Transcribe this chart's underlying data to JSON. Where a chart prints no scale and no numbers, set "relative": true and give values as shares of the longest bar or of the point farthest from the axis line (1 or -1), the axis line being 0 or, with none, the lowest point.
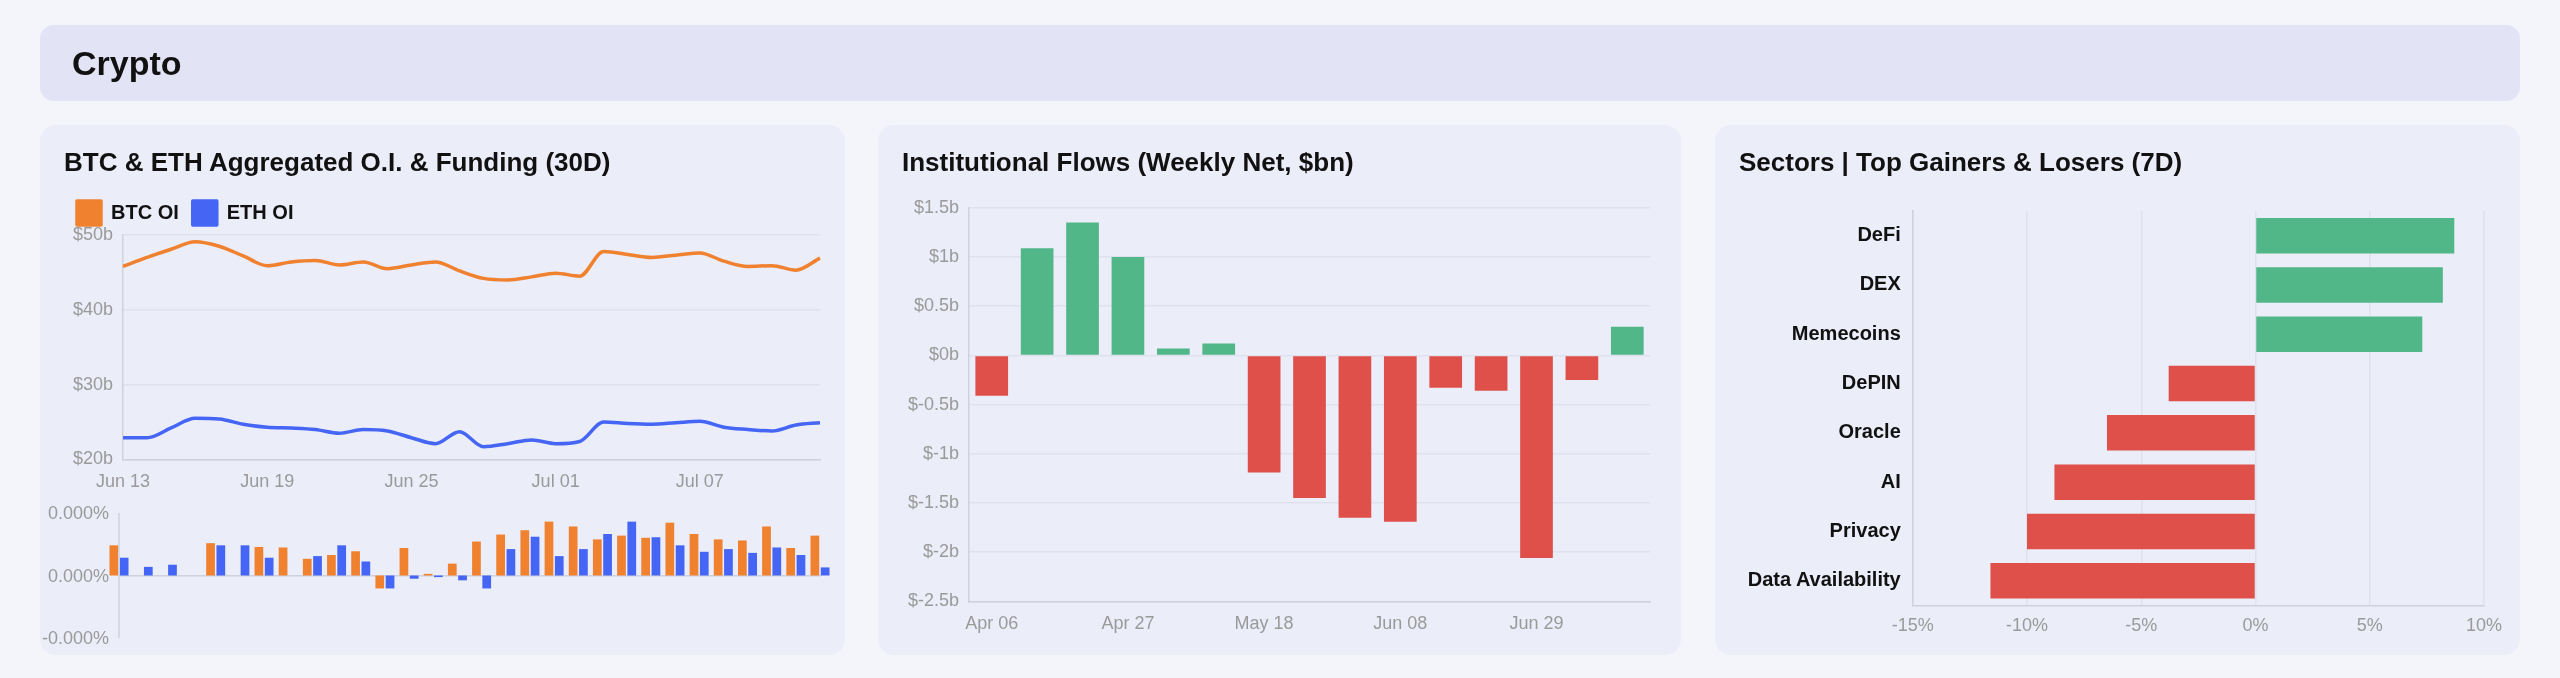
{
  "chart_data": [
    {
      "type": "other",
      "title": "Crypto"
    },
    {
      "type": "line",
      "title": "BTC & ETH Aggregated O.I. & Funding (30D)",
      "legend": "top left",
      "marker": "none",
      "grid": "y",
      "categories": [
        "Jun 13",
        null,
        null,
        null,
        null,
        null,
        "Jun 19",
        null,
        null,
        null,
        null,
        null,
        "Jun 25",
        null,
        null,
        null,
        null,
        null,
        "Jul 01",
        null,
        null,
        null,
        null,
        null,
        "Jul 07",
        null,
        null,
        null,
        null,
        null
      ],
      "ylim": [
        20,
        50
      ],
      "yticks": [
        {
          "value": 20,
          "label": "$20b"
        },
        {
          "value": 30,
          "label": "$30b"
        },
        {
          "value": 40,
          "label": "$40b"
        },
        {
          "value": 50,
          "label": "$50b"
        }
      ],
      "series": [
        {
          "name": "BTC OI",
          "color": "#f0812f",
          "values": [
            45.8,
            47.0,
            48.1,
            49.1,
            48.5,
            47.2,
            45.9,
            46.4,
            46.6,
            46.0,
            46.4,
            45.5,
            46.0,
            46.4,
            45.2,
            44.2,
            44.0,
            44.4,
            44.9,
            44.5,
            47.8,
            47.4,
            47.0,
            47.3,
            47.6,
            46.5,
            45.8,
            45.9,
            45.3,
            46.9
          ]
        },
        {
          "name": "ETH OI",
          "color": "#4565f5",
          "values": [
            22.9,
            22.9,
            24.2,
            25.5,
            25.4,
            24.7,
            24.3,
            24.2,
            24.0,
            23.5,
            24.0,
            23.8,
            22.9,
            22.1,
            23.7,
            21.7,
            22.1,
            22.6,
            22.1,
            22.4,
            25.0,
            24.8,
            24.7,
            24.9,
            25.1,
            24.3,
            24.0,
            23.8,
            24.6,
            24.9
          ]
        }
      ]
    },
    {
      "type": "bar",
      "categories": [
        null,
        null,
        null,
        null,
        null,
        null,
        null,
        null,
        null,
        null,
        null,
        null,
        null,
        null,
        null,
        null,
        null,
        null,
        null,
        null,
        null,
        null,
        null,
        null,
        null,
        null,
        null,
        null,
        null,
        null
      ],
      "relative": true,
      "annotations": [
        "0.000%",
        "0.000%",
        "-0.000%"
      ],
      "series": [
        {
          "color": "#f0812f",
          "values": [
            0.56,
            null,
            null,
            null,
            0.6,
            null,
            0.53,
            0.52,
            0.31,
            0.38,
            0.45,
            -0.24,
            0.51,
            0.03,
            0.22,
            0.63,
            0.76,
            0.84,
            1,
            0.91,
            0.67,
            0.74,
            0.7,
            0.98,
            0.77,
            0.67,
            0.65,
            0.91,
            0.51,
            0.74
          ]
        },
        {
          "color": "#4565f5",
          "values": [
            0.33,
            0.16,
            0.2,
            null,
            0.56,
            0.56,
            0.33,
            null,
            0.36,
            0.56,
            0.26,
            -0.24,
            -0.06,
            -0.03,
            -0.09,
            -0.24,
            0.49,
            0.72,
            0.36,
            0.49,
            0.77,
            1,
            0.71,
            0.56,
            0.44,
            0.49,
            0.42,
            0.52,
            0.38,
            0.15
          ]
        }
      ]
    },
    {
      "type": "bar",
      "title": "Institutional Flows (Weekly Net, $bn)",
      "grid": "y",
      "categories": [
        "Apr 06",
        null,
        null,
        "Apr 27",
        null,
        null,
        "May 18",
        null,
        null,
        "Jun 08",
        null,
        null,
        "Jun 29",
        null,
        null
      ],
      "values": [
        -0.41,
        1.09,
        1.35,
        1.0,
        0.07,
        0.12,
        -1.19,
        -1.45,
        -1.65,
        -1.69,
        -0.33,
        -0.36,
        -2.06,
        -0.25,
        0.29
      ],
      "colors": [
        "#de5049",
        "#52b788",
        "#52b788",
        "#52b788",
        "#52b788",
        "#52b788",
        "#de5049",
        "#de5049",
        "#de5049",
        "#de5049",
        "#de5049",
        "#de5049",
        "#de5049",
        "#de5049",
        "#52b788"
      ],
      "ylim": [
        -2.5,
        1.5
      ],
      "yticks": [
        {
          "value": -2.5,
          "label": "$-2.5b"
        },
        {
          "value": -2,
          "label": "$-2b"
        },
        {
          "value": -1.5,
          "label": "$-1.5b"
        },
        {
          "value": -1,
          "label": "$-1b"
        },
        {
          "value": -0.5,
          "label": "$-0.5b"
        },
        {
          "value": 0,
          "label": "$0b"
        },
        {
          "value": 0.5,
          "label": "$0.5b"
        },
        {
          "value": 1,
          "label": "$1b"
        },
        {
          "value": 1.5,
          "label": "$1.5b"
        }
      ]
    },
    {
      "type": "bar",
      "title": "Sectors | Top Gainers & Losers (7D)",
      "orientation": "horizontal",
      "grid": "x",
      "categories": [
        "DeFi",
        "DEX",
        "Memecoins",
        "DePIN",
        "Oracle",
        "AI",
        "Privacy",
        "Data Availability"
      ],
      "values": [
        8.7,
        8.2,
        7.3,
        -3.8,
        -6.5,
        -8.8,
        -10.0,
        -11.6
      ],
      "colors": [
        "#52b788",
        "#52b788",
        "#52b788",
        "#de5049",
        "#de5049",
        "#de5049",
        "#de5049",
        "#de5049"
      ],
      "xlim": [
        -15,
        10
      ],
      "xticks": [
        {
          "value": -15,
          "label": "-15%"
        },
        {
          "value": -10,
          "label": "-10%"
        },
        {
          "value": -5,
          "label": "-5%"
        },
        {
          "value": 0,
          "label": "0%"
        },
        {
          "value": 5,
          "label": "5%"
        },
        {
          "value": 10,
          "label": "10%"
        }
      ]
    }
  ]
}
